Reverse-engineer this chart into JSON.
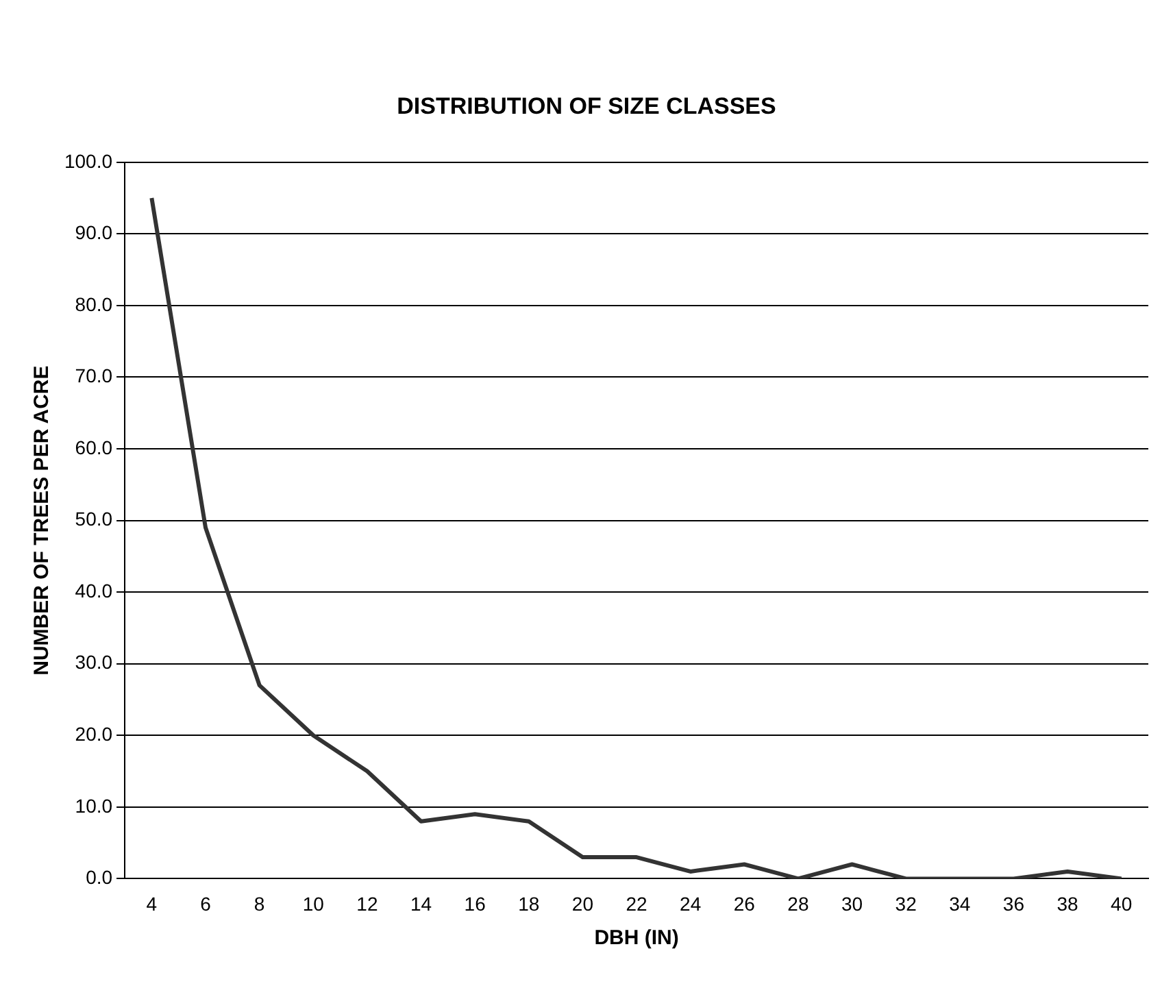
{
  "chart_data": {
    "type": "line",
    "title": "DISTRIBUTION OF SIZE CLASSES",
    "xlabel": "DBH (IN)",
    "ylabel": "NUMBER OF TREES PER ACRE",
    "categories": [
      "4",
      "6",
      "8",
      "10",
      "12",
      "14",
      "16",
      "18",
      "20",
      "22",
      "24",
      "26",
      "28",
      "30",
      "32",
      "34",
      "36",
      "38",
      "40"
    ],
    "series": [
      {
        "color": "#333333",
        "values": [
          95,
          49,
          27,
          20,
          15,
          8,
          9,
          8,
          3,
          3,
          1,
          2,
          0,
          2,
          0,
          0,
          0,
          1,
          0
        ]
      }
    ],
    "ylim": [
      0,
      100
    ],
    "yticks": [
      {
        "value": 0,
        "label": "0.0"
      },
      {
        "value": 10,
        "label": "10.0"
      },
      {
        "value": 20,
        "label": "20.0"
      },
      {
        "value": 30,
        "label": "30.0"
      },
      {
        "value": 40,
        "label": "40.0"
      },
      {
        "value": 50,
        "label": "50.0"
      },
      {
        "value": 60,
        "label": "60.0"
      },
      {
        "value": 70,
        "label": "70.0"
      },
      {
        "value": 80,
        "label": "80.0"
      },
      {
        "value": 90,
        "label": "90.0"
      },
      {
        "value": 100,
        "label": "100.0"
      }
    ],
    "grid": "y",
    "legend": false,
    "marker": "none",
    "line_style": "solid"
  }
}
